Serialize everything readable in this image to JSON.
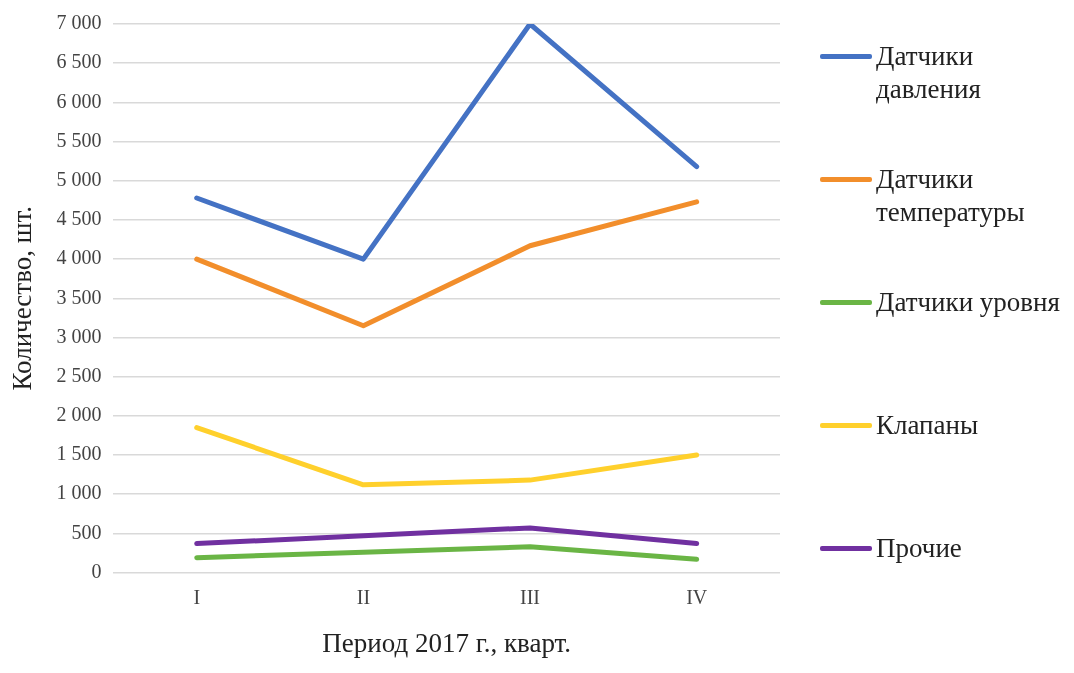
{
  "chart_data": {
    "type": "line",
    "xlabel": "Период 2017 г., кварт.",
    "ylabel": "Количество, шт.",
    "categories": [
      "I",
      "II",
      "III",
      "IV"
    ],
    "series": [
      {
        "name": "Датчики давления",
        "color": "#4472c4",
        "values": [
          4780,
          4000,
          7000,
          5180
        ]
      },
      {
        "name": "Датчики температуры",
        "color": "#f28e2b",
        "values": [
          4000,
          3150,
          4170,
          4730
        ]
      },
      {
        "name": "Датчики уровня",
        "color": "#6ab545",
        "values": [
          190,
          260,
          330,
          170
        ]
      },
      {
        "name": "Клапаны",
        "color": "#ffd02c",
        "values": [
          1850,
          1120,
          1180,
          1500
        ]
      },
      {
        "name": "Прочие",
        "color": "#7030a0",
        "values": [
          370,
          470,
          570,
          370
        ]
      }
    ],
    "ylim": [
      0,
      7000
    ],
    "yticks": [
      {
        "value": 0,
        "label": "0"
      },
      {
        "value": 500,
        "label": "500"
      },
      {
        "value": 1000,
        "label": "1 000"
      },
      {
        "value": 1500,
        "label": "1 500"
      },
      {
        "value": 2000,
        "label": "2 000"
      },
      {
        "value": 2500,
        "label": "2 500"
      },
      {
        "value": 3000,
        "label": "3 000"
      },
      {
        "value": 3500,
        "label": "3 500"
      },
      {
        "value": 4000,
        "label": "4 000"
      },
      {
        "value": 4500,
        "label": "4 500"
      },
      {
        "value": 5000,
        "label": "5 000"
      },
      {
        "value": 5500,
        "label": "5 500"
      },
      {
        "value": 6000,
        "label": "6 000"
      },
      {
        "value": 6500,
        "label": "6 500"
      },
      {
        "value": 7000,
        "label": "7 000"
      }
    ],
    "grid": "y",
    "legend": "right",
    "marker": "none",
    "line_style": "solid"
  }
}
